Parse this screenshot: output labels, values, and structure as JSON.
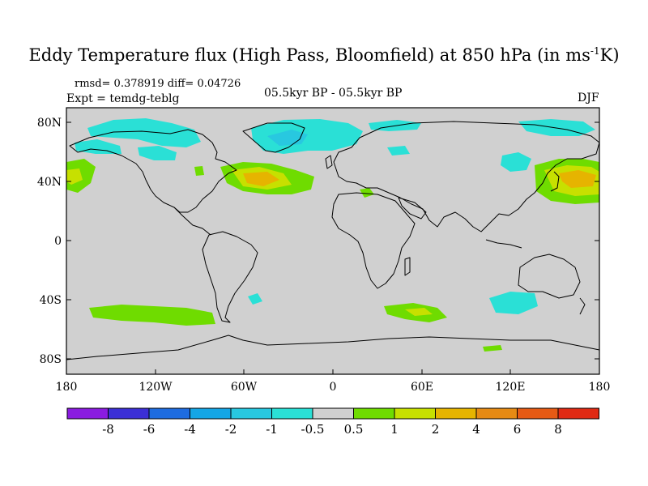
{
  "header": {
    "title_main": "Eddy Temperature flux (High Pass, Bloomfield) at 850 hPa (in ms",
    "title_sup": "-1",
    "title_end": "K)",
    "stats": "rmsd= 0.378919 diff= 0.04726",
    "experiment": "Expt = temdg-teblg",
    "period": "05.5kyr BP - 05.5kyr BP",
    "season": "DJF"
  },
  "axes": {
    "lat_ticks": [
      "80N",
      "40N",
      "0",
      "40S",
      "80S"
    ],
    "lon_ticks": [
      "180",
      "120W",
      "60W",
      "0",
      "60E",
      "120E",
      "180"
    ]
  },
  "colorbar": {
    "labels": [
      "-8",
      "-6",
      "-4",
      "-2",
      "-1",
      "-0.5",
      "0.5",
      "1",
      "2",
      "4",
      "6",
      "8"
    ],
    "colors": [
      "#8a1be0",
      "#3b2fd6",
      "#1e6ce0",
      "#14a6e6",
      "#28c8e0",
      "#2ae0d6",
      "#d0d0d0",
      "#6fdc00",
      "#c7e000",
      "#e6b400",
      "#e68a14",
      "#e65a14",
      "#e02a14"
    ]
  },
  "colors": {
    "background": "#d0d0d0",
    "coast": "#000000",
    "neg_weak": "#2ae0d6",
    "neg_mid": "#28c8e0",
    "pos_weak": "#6fdc00",
    "pos_mid": "#c7e000",
    "pos_strong": "#e6b400"
  }
}
